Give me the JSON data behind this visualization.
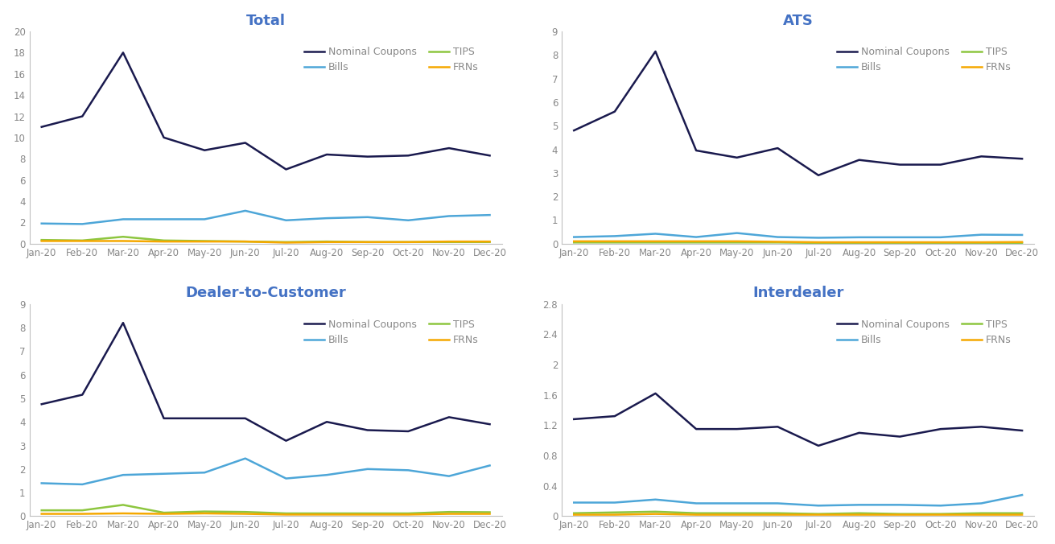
{
  "months": [
    "Jan-20",
    "Feb-20",
    "Mar-20",
    "Apr-20",
    "May-20",
    "Jun-20",
    "Jul-20",
    "Aug-20",
    "Sep-20",
    "Oct-20",
    "Nov-20",
    "Dec-20"
  ],
  "panels": [
    {
      "title": "Total",
      "ylim": [
        0,
        20
      ],
      "yticks": [
        0,
        2,
        4,
        6,
        8,
        10,
        12,
        14,
        16,
        18,
        20
      ],
      "series": {
        "Nominal Coupons": [
          11.0,
          12.0,
          18.0,
          10.0,
          8.8,
          9.5,
          7.0,
          8.4,
          8.2,
          8.3,
          9.0,
          8.3
        ],
        "Bills": [
          1.9,
          1.85,
          2.3,
          2.3,
          2.3,
          3.1,
          2.2,
          2.4,
          2.5,
          2.2,
          2.6,
          2.7
        ],
        "TIPS": [
          0.35,
          0.3,
          0.65,
          0.3,
          0.25,
          0.2,
          0.15,
          0.2,
          0.15,
          0.15,
          0.15,
          0.15
        ],
        "FRNs": [
          0.25,
          0.25,
          0.25,
          0.2,
          0.2,
          0.2,
          0.1,
          0.15,
          0.15,
          0.15,
          0.2,
          0.2
        ]
      }
    },
    {
      "title": "ATS",
      "ylim": [
        0,
        9
      ],
      "yticks": [
        0,
        1,
        2,
        3,
        4,
        5,
        6,
        7,
        8,
        9
      ],
      "series": {
        "Nominal Coupons": [
          4.8,
          5.6,
          8.15,
          3.95,
          3.65,
          4.05,
          2.9,
          3.55,
          3.35,
          3.35,
          3.7,
          3.6
        ],
        "Bills": [
          0.28,
          0.32,
          0.42,
          0.28,
          0.45,
          0.28,
          0.25,
          0.27,
          0.27,
          0.27,
          0.38,
          0.37
        ],
        "TIPS": [
          0.05,
          0.05,
          0.05,
          0.05,
          0.05,
          0.05,
          0.03,
          0.03,
          0.03,
          0.03,
          0.03,
          0.03
        ],
        "FRNs": [
          0.1,
          0.1,
          0.1,
          0.1,
          0.1,
          0.08,
          0.06,
          0.06,
          0.06,
          0.06,
          0.06,
          0.07
        ]
      }
    },
    {
      "title": "Dealer-to-Customer",
      "ylim": [
        0,
        9
      ],
      "yticks": [
        0,
        1,
        2,
        3,
        4,
        5,
        6,
        7,
        8,
        9
      ],
      "series": {
        "Nominal Coupons": [
          4.75,
          5.15,
          8.2,
          4.15,
          4.15,
          4.15,
          3.2,
          4.0,
          3.65,
          3.6,
          4.2,
          3.9
        ],
        "Bills": [
          1.4,
          1.35,
          1.75,
          1.8,
          1.85,
          2.45,
          1.6,
          1.75,
          2.0,
          1.95,
          1.7,
          2.15
        ],
        "TIPS": [
          0.25,
          0.25,
          0.48,
          0.15,
          0.2,
          0.18,
          0.12,
          0.12,
          0.12,
          0.12,
          0.18,
          0.17
        ],
        "FRNs": [
          0.1,
          0.1,
          0.12,
          0.1,
          0.12,
          0.1,
          0.07,
          0.07,
          0.07,
          0.07,
          0.1,
          0.1
        ]
      }
    },
    {
      "title": "Interdealer",
      "ylim": [
        0.0,
        2.8
      ],
      "yticks": [
        0.0,
        0.4,
        0.8,
        1.2,
        1.6,
        2.0,
        2.4,
        2.8
      ],
      "series": {
        "Nominal Coupons": [
          1.28,
          1.32,
          1.62,
          1.15,
          1.15,
          1.18,
          0.93,
          1.1,
          1.05,
          1.15,
          1.18,
          1.13
        ],
        "Bills": [
          0.18,
          0.18,
          0.22,
          0.17,
          0.17,
          0.17,
          0.14,
          0.15,
          0.15,
          0.14,
          0.17,
          0.28
        ],
        "TIPS": [
          0.04,
          0.05,
          0.06,
          0.04,
          0.04,
          0.04,
          0.03,
          0.04,
          0.03,
          0.03,
          0.04,
          0.04
        ],
        "FRNs": [
          0.02,
          0.02,
          0.03,
          0.02,
          0.02,
          0.02,
          0.02,
          0.02,
          0.02,
          0.02,
          0.02,
          0.02
        ]
      }
    }
  ],
  "colors": {
    "Nominal Coupons": "#1a1a4e",
    "Bills": "#4da6d8",
    "TIPS": "#8dc63f",
    "FRNs": "#f5a800"
  },
  "legend_text_colors": {
    "Nominal Coupons": "#7f7f7f",
    "Bills": "#7f7f7f",
    "TIPS": "#7f7f7f",
    "FRNs": "#7f7f7f"
  },
  "title_color": "#4472c4",
  "line_width": 1.8,
  "title_fontsize": 13,
  "legend_fontsize": 9,
  "tick_fontsize": 8.5,
  "spine_color": "#c0c0c0",
  "tick_color": "#888888"
}
